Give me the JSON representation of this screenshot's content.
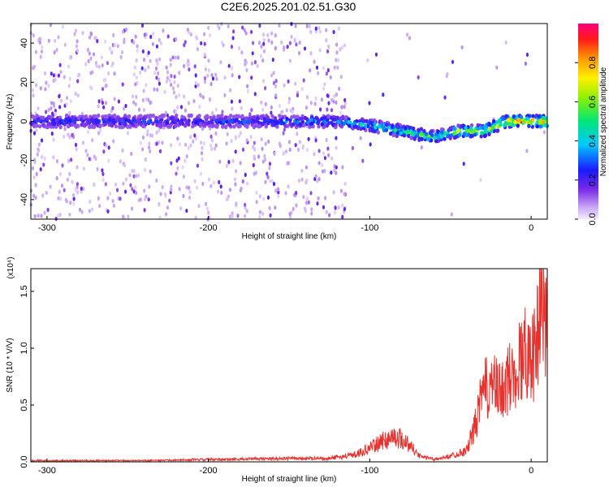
{
  "title": "C2E6.2025.201.02.51.G30",
  "chart_data": [
    {
      "type": "heatmap",
      "xlabel": "Height of straight line (km)",
      "ylabel": "Frequency (Hz)",
      "xlim": [
        -310,
        10
      ],
      "ylim": [
        -50,
        50
      ],
      "xticks": [
        -300,
        -200,
        -100,
        0
      ],
      "xtick_labels": [
        "-300",
        "-200",
        "-100",
        "0"
      ],
      "yticks": [
        -40,
        -20,
        0,
        20,
        40
      ],
      "ytick_labels": [
        "-40",
        "-20",
        "0",
        "20",
        "40"
      ],
      "colorbar": {
        "label": "Normalized spectral amplitude",
        "range": [
          0,
          1
        ],
        "ticks": [
          0.0,
          0.2,
          0.4,
          0.6,
          0.8
        ],
        "tick_labels": [
          "0.0",
          "0.2",
          "0.4",
          "0.6",
          "0.8"
        ],
        "colormap": "rainbow (lavender to red)"
      },
      "ridge": {
        "x": [
          -310,
          -250,
          -200,
          -150,
          -120,
          -100,
          -80,
          -60,
          -45,
          -30,
          -15,
          0,
          10
        ],
        "y": [
          0,
          0,
          0,
          0,
          0,
          -2,
          -5,
          -8,
          -5,
          -5,
          0,
          0,
          0
        ],
        "amplitude": [
          0.3,
          0.3,
          0.3,
          0.35,
          0.4,
          0.5,
          0.55,
          0.6,
          0.7,
          0.75,
          0.85,
          0.95,
          0.9
        ]
      },
      "noise_region_x": [
        -310,
        -115
      ],
      "grid": false
    },
    {
      "type": "line",
      "xlabel": "Height of straight line (km)",
      "ylabel": "SNR (10 * V/V)",
      "y_multiplier_label": "(x10⁴)",
      "xlim": [
        -310,
        10
      ],
      "ylim": [
        0,
        1.7
      ],
      "xticks": [
        -300,
        -200,
        -100,
        0
      ],
      "xtick_labels": [
        "-300",
        "-200",
        "-100",
        "0"
      ],
      "yticks": [
        0.0,
        0.5,
        1.0,
        1.5
      ],
      "ytick_labels": [
        "0.0",
        "0.5",
        "1.0",
        "1.5"
      ],
      "series": [
        {
          "color": "#e8322e",
          "x": [
            -310,
            -250,
            -200,
            -150,
            -125,
            -110,
            -100,
            -90,
            -85,
            -80,
            -75,
            -70,
            -60,
            -50,
            -40,
            -35,
            -30,
            -25,
            -20,
            -10,
            -5,
            0,
            3,
            6,
            8,
            10
          ],
          "y": [
            0.01,
            0.01,
            0.02,
            0.03,
            0.03,
            0.06,
            0.12,
            0.2,
            0.22,
            0.2,
            0.15,
            0.06,
            0.02,
            0.05,
            0.1,
            0.3,
            0.6,
            0.7,
            0.6,
            0.8,
            0.95,
            1.0,
            0.9,
            1.65,
            1.3,
            1.2
          ]
        }
      ],
      "grid": false
    }
  ]
}
